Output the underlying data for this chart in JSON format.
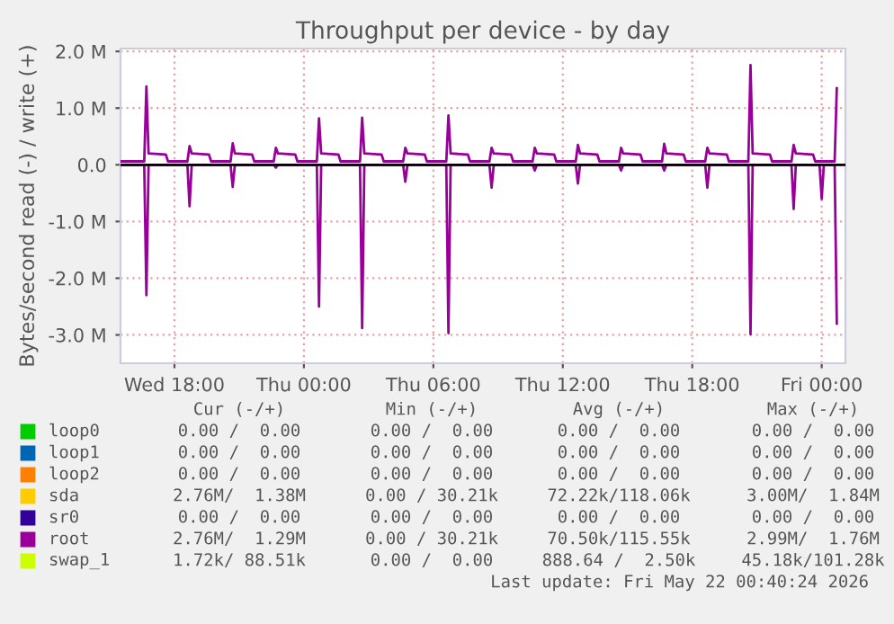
{
  "chart_data": {
    "type": "line",
    "title": "Throughput per device - by day",
    "ylabel": "Bytes/second read (-) / write (+)",
    "xlim": [
      "2026-05-20T15:30",
      "2026-05-22T01:06"
    ],
    "xticks": [
      {
        "value": "2026-05-20T18:00",
        "label": "Wed 18:00"
      },
      {
        "value": "2026-05-21T00:00",
        "label": "Thu 00:00"
      },
      {
        "value": "2026-05-21T06:00",
        "label": "Thu 06:00"
      },
      {
        "value": "2026-05-21T12:00",
        "label": "Thu 12:00"
      },
      {
        "value": "2026-05-21T18:00",
        "label": "Thu 18:00"
      },
      {
        "value": "2026-05-22T00:00",
        "label": "Fri 00:00"
      }
    ],
    "ylim": [
      -3.5,
      2.05
    ],
    "yticks": [
      {
        "value": -3,
        "label": "-3.0 M"
      },
      {
        "value": -2,
        "label": "-2.0 M"
      },
      {
        "value": -1,
        "label": "-1.0 M"
      },
      {
        "value": 0,
        "label": "0.0"
      },
      {
        "value": 1,
        "label": "1.0 M"
      },
      {
        "value": 2,
        "label": "2.0 M"
      }
    ],
    "grid": true,
    "legend": "bottom",
    "ref_lines": [
      {
        "axis": "y",
        "value": 0,
        "color": "#000000"
      }
    ],
    "series": [
      {
        "name": "loop0",
        "color": "#00cc00"
      },
      {
        "name": "loop1",
        "color": "#0066b3"
      },
      {
        "name": "loop2",
        "color": "#ff8000"
      },
      {
        "name": "sda",
        "color": "#ffcc00"
      },
      {
        "name": "sr0",
        "color": "#330099"
      },
      {
        "name": "root",
        "color": "#990099",
        "x": [
          "2026-05-20T15:30",
          "2026-05-20T16:36",
          "2026-05-20T16:42",
          "2026-05-20T16:48",
          "2026-05-20T17:36",
          "2026-05-20T17:42",
          "2026-05-20T18:36",
          "2026-05-20T18:42",
          "2026-05-20T18:48",
          "2026-05-20T19:36",
          "2026-05-20T19:42",
          "2026-05-20T20:36",
          "2026-05-20T20:42",
          "2026-05-20T20:48",
          "2026-05-20T21:36",
          "2026-05-20T21:42",
          "2026-05-20T22:36",
          "2026-05-20T22:42",
          "2026-05-20T22:48",
          "2026-05-20T23:36",
          "2026-05-20T23:42",
          "2026-05-21T00:36",
          "2026-05-21T00:42",
          "2026-05-21T00:48",
          "2026-05-21T01:36",
          "2026-05-21T01:42",
          "2026-05-21T02:36",
          "2026-05-21T02:42",
          "2026-05-21T02:48",
          "2026-05-21T03:36",
          "2026-05-21T03:42",
          "2026-05-21T04:36",
          "2026-05-21T04:42",
          "2026-05-21T04:48",
          "2026-05-21T05:36",
          "2026-05-21T05:42",
          "2026-05-21T06:36",
          "2026-05-21T06:42",
          "2026-05-21T06:48",
          "2026-05-21T07:36",
          "2026-05-21T07:42",
          "2026-05-21T08:36",
          "2026-05-21T08:42",
          "2026-05-21T08:48",
          "2026-05-21T09:36",
          "2026-05-21T09:42",
          "2026-05-21T10:36",
          "2026-05-21T10:42",
          "2026-05-21T10:48",
          "2026-05-21T11:36",
          "2026-05-21T11:42",
          "2026-05-21T12:36",
          "2026-05-21T12:42",
          "2026-05-21T12:48",
          "2026-05-21T13:36",
          "2026-05-21T13:42",
          "2026-05-21T14:36",
          "2026-05-21T14:42",
          "2026-05-21T14:48",
          "2026-05-21T15:36",
          "2026-05-21T15:42",
          "2026-05-21T16:36",
          "2026-05-21T16:42",
          "2026-05-21T16:48",
          "2026-05-21T17:36",
          "2026-05-21T17:42",
          "2026-05-21T18:36",
          "2026-05-21T18:42",
          "2026-05-21T18:48",
          "2026-05-21T19:36",
          "2026-05-21T19:42",
          "2026-05-21T20:36",
          "2026-05-21T20:42",
          "2026-05-21T20:48",
          "2026-05-21T21:36",
          "2026-05-21T21:42",
          "2026-05-21T22:36",
          "2026-05-21T22:42",
          "2026-05-21T22:48",
          "2026-05-21T23:36",
          "2026-05-21T23:42",
          "2026-05-22T00:36",
          "2026-05-22T00:42"
        ],
        "values": [
          0.06,
          0.06,
          1.38,
          0.2,
          0.18,
          0.06,
          0.06,
          0.33,
          0.2,
          0.18,
          0.06,
          0.06,
          0.38,
          0.2,
          0.18,
          0.06,
          0.06,
          0.3,
          0.2,
          0.18,
          0.06,
          0.06,
          0.82,
          0.2,
          0.18,
          0.06,
          0.06,
          0.83,
          0.2,
          0.18,
          0.06,
          0.06,
          0.3,
          0.2,
          0.18,
          0.06,
          0.06,
          0.87,
          0.2,
          0.18,
          0.06,
          0.06,
          0.3,
          0.2,
          0.18,
          0.06,
          0.06,
          0.3,
          0.2,
          0.18,
          0.06,
          0.06,
          0.35,
          0.2,
          0.18,
          0.06,
          0.06,
          0.3,
          0.2,
          0.18,
          0.06,
          0.06,
          0.37,
          0.2,
          0.18,
          0.06,
          0.06,
          0.3,
          0.2,
          0.18,
          0.06,
          0.06,
          1.76,
          0.2,
          0.18,
          0.06,
          0.06,
          0.35,
          0.2,
          0.18,
          0.06,
          0.06,
          1.35
        ]
      },
      {
        "color": "#990099",
        "x": [
          "2026-05-20T15:30",
          "2026-05-20T16:36",
          "2026-05-20T16:42",
          "2026-05-20T16:48",
          "2026-05-20T18:36",
          "2026-05-20T18:42",
          "2026-05-20T18:48",
          "2026-05-20T20:36",
          "2026-05-20T20:42",
          "2026-05-20T20:48",
          "2026-05-20T22:36",
          "2026-05-20T22:42",
          "2026-05-20T22:48",
          "2026-05-21T00:36",
          "2026-05-21T00:42",
          "2026-05-21T00:48",
          "2026-05-21T02:36",
          "2026-05-21T02:42",
          "2026-05-21T02:48",
          "2026-05-21T04:36",
          "2026-05-21T04:42",
          "2026-05-21T04:48",
          "2026-05-21T06:36",
          "2026-05-21T06:42",
          "2026-05-21T06:48",
          "2026-05-21T08:36",
          "2026-05-21T08:42",
          "2026-05-21T08:48",
          "2026-05-21T10:36",
          "2026-05-21T10:42",
          "2026-05-21T10:48",
          "2026-05-21T12:36",
          "2026-05-21T12:42",
          "2026-05-21T12:48",
          "2026-05-21T14:36",
          "2026-05-21T14:42",
          "2026-05-21T14:48",
          "2026-05-21T16:36",
          "2026-05-21T16:42",
          "2026-05-21T16:48",
          "2026-05-21T18:36",
          "2026-05-21T18:42",
          "2026-05-21T18:48",
          "2026-05-21T20:36",
          "2026-05-21T20:42",
          "2026-05-21T20:48",
          "2026-05-21T22:36",
          "2026-05-21T22:42",
          "2026-05-21T22:48",
          "2026-05-21T23:54",
          "2026-05-22T00:00",
          "2026-05-22T00:06",
          "2026-05-22T00:36",
          "2026-05-22T00:42"
        ],
        "values": [
          0,
          0,
          -2.3,
          0,
          0,
          -0.73,
          0,
          0,
          -0.39,
          0,
          0,
          -0.05,
          0,
          0,
          -2.5,
          0,
          0,
          -2.88,
          0,
          0,
          -0.3,
          0,
          0,
          -2.97,
          0,
          0,
          -0.4,
          0,
          0,
          -0.1,
          0,
          0,
          -0.33,
          0,
          0,
          -0.1,
          0,
          0,
          -0.1,
          0,
          0,
          -0.4,
          0,
          0,
          -2.99,
          0,
          0,
          -0.78,
          0,
          0,
          -0.6,
          0,
          0,
          -2.8
        ]
      },
      {
        "name": "swap_1",
        "color": "#ccff00"
      }
    ],
    "annotations": [
      "Cur (-/+)",
      "Min (-/+)",
      "Avg (-/+)",
      "Max (-/+)",
      "0.00 /  0.00",
      "0.00 /  0.00",
      "0.00 /  0.00",
      "0.00 /  0.00",
      "0.00 /  0.00",
      "0.00 /  0.00",
      "0.00 /  0.00",
      "0.00 /  0.00",
      "0.00 /  0.00",
      "0.00 /  0.00",
      "0.00 /  0.00",
      "0.00 /  0.00",
      "2.76M/  1.38M",
      "0.00 / 30.21k",
      "72.22k/118.06k",
      "3.00M/  1.84M",
      "0.00 /  0.00",
      "0.00 /  0.00",
      "0.00 /  0.00",
      "0.00 /  0.00",
      "2.76M/  1.29M",
      "0.00 / 30.21k",
      "70.50k/115.55k",
      "2.99M/  1.76M",
      "1.72k/ 88.51k",
      "0.00 /  0.00",
      "888.64 /  2.50k",
      "45.18k/101.28k",
      "Last update: Fri May 22 00:40:24 2026"
    ]
  }
}
